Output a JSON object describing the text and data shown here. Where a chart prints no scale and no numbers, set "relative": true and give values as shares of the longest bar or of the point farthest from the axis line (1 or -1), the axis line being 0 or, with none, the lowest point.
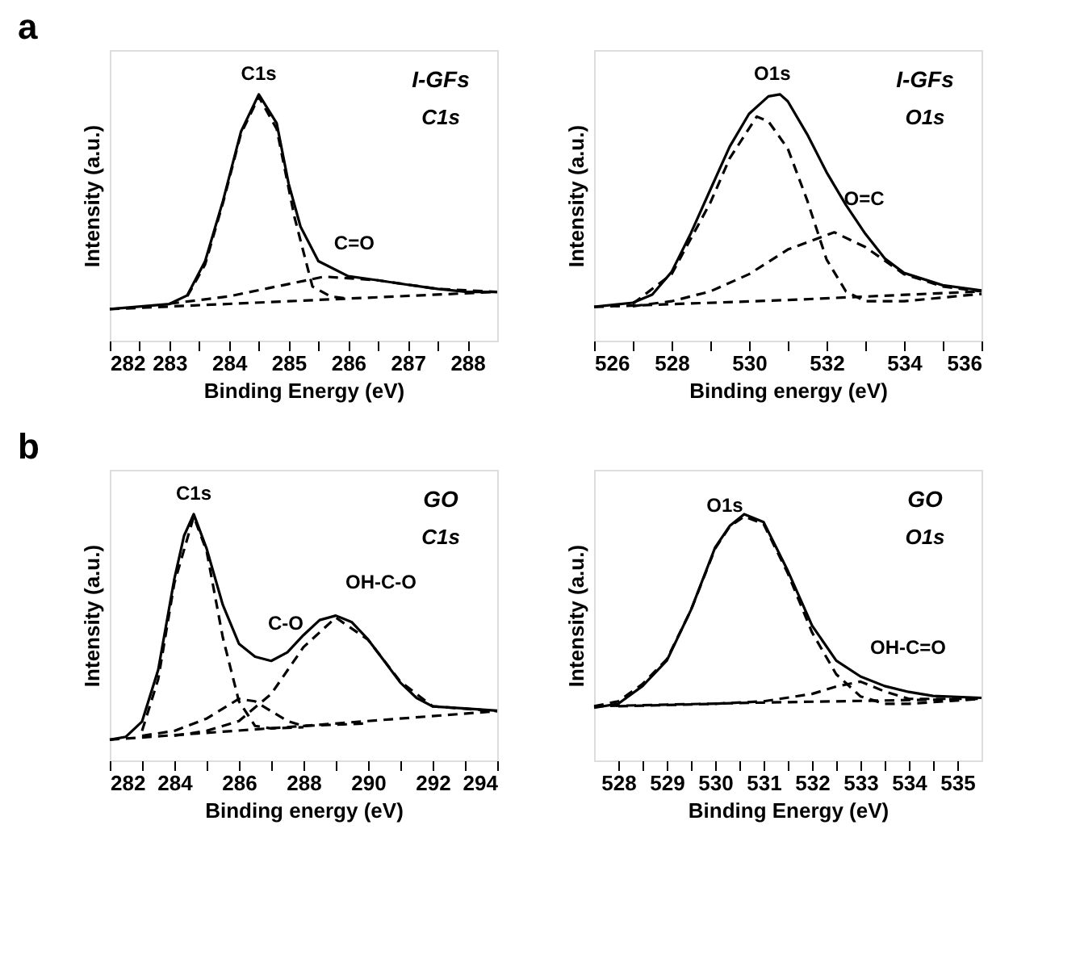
{
  "chart_data": [
    {
      "type": "line",
      "title": "a",
      "xlabel": "Binding Energy (eV)",
      "ylabel": "Intensity (a.u.)",
      "relative": true,
      "xlim": [
        282,
        288.5
      ],
      "xticks": [
        282,
        {
          "value": 282.5,
          "label": null
        },
        283,
        {
          "value": 283.5,
          "label": null
        },
        284,
        {
          "value": 284.5,
          "label": null
        },
        285,
        {
          "value": 285.5,
          "label": null
        },
        286,
        {
          "value": 286.5,
          "label": null
        },
        287,
        {
          "value": 287.5,
          "label": null
        },
        288
      ],
      "tick_labels": "x",
      "grid": false,
      "marker": "none",
      "series": [
        {
          "color": "#000000",
          "line_style": "solid",
          "x": [
            282,
            283,
            283.3,
            283.6,
            283.9,
            284.2,
            284.5,
            284.8,
            285.0,
            285.2,
            285.5,
            286,
            286.5,
            287,
            287.5,
            288,
            288.5
          ],
          "values": [
            0.128,
            0.149,
            0.184,
            0.323,
            0.568,
            0.848,
            1,
            0.883,
            0.638,
            0.463,
            0.323,
            0.262,
            0.245,
            0.227,
            0.21,
            0.198,
            0.198
          ]
        },
        {
          "color": "#000000",
          "line_style": "dashed",
          "x": [
            283.3,
            283.6,
            283.9,
            284.2,
            284.5,
            284.8,
            285.1,
            285.4,
            285.7,
            286
          ],
          "values": [
            0.18,
            0.31,
            0.56,
            0.84,
            0.99,
            0.86,
            0.5,
            0.22,
            0.18,
            0.17
          ]
        },
        {
          "color": "#000000",
          "line_style": "dashed",
          "x": [
            283,
            284,
            285,
            285.6,
            286.5,
            287.5,
            288.5
          ],
          "values": [
            0.15,
            0.18,
            0.23,
            0.26,
            0.245,
            0.21,
            0.198
          ]
        },
        {
          "color": "#000000",
          "line_style": "dashed",
          "x": [
            282,
            285,
            288.5
          ],
          "values": [
            0.128,
            0.16,
            0.198
          ]
        }
      ],
      "annotations": [
        {
          "text": "C1s",
          "x": 284.5,
          "y": 1
        },
        {
          "text": "C=O",
          "x": 285.6,
          "y": 0.26
        },
        "I-GFs",
        "C1s"
      ]
    },
    {
      "type": "line",
      "xlabel": "Binding energy (eV)",
      "ylabel": "Intensity (a.u.)",
      "relative": true,
      "xlim": [
        526,
        536
      ],
      "xticks": [
        526,
        {
          "value": 527,
          "label": null
        },
        528,
        {
          "value": 529,
          "label": null
        },
        530,
        {
          "value": 531,
          "label": null
        },
        532,
        {
          "value": 533,
          "label": null
        },
        534,
        {
          "value": 535,
          "label": null
        },
        536
      ],
      "tick_labels": "x",
      "grid": false,
      "marker": "none",
      "series": [
        {
          "color": "#000000",
          "line_style": "solid",
          "x": [
            526,
            527,
            527.5,
            528,
            528.5,
            529,
            529.5,
            530,
            530.5,
            530.8,
            531,
            531.5,
            532,
            532.5,
            533,
            533.5,
            534,
            535,
            536
          ],
          "values": [
            0.137,
            0.154,
            0.187,
            0.279,
            0.437,
            0.613,
            0.788,
            0.921,
            0.992,
            1,
            0.972,
            0.838,
            0.684,
            0.551,
            0.434,
            0.334,
            0.275,
            0.225,
            0.204
          ]
        },
        {
          "color": "#000000",
          "line_style": "dashed",
          "x": [
            527,
            528,
            529,
            529.5,
            530.2,
            530.5,
            531,
            531.5,
            532,
            532.5,
            533,
            534,
            536
          ],
          "values": [
            0.15,
            0.27,
            0.56,
            0.74,
            0.91,
            0.89,
            0.78,
            0.57,
            0.33,
            0.2,
            0.16,
            0.16,
            0.19
          ]
        },
        {
          "color": "#000000",
          "line_style": "dashed",
          "x": [
            527,
            528,
            529,
            530,
            531,
            532.2,
            533,
            534,
            535,
            536
          ],
          "values": [
            0.14,
            0.16,
            0.2,
            0.27,
            0.37,
            0.44,
            0.38,
            0.27,
            0.22,
            0.2
          ]
        },
        {
          "color": "#000000",
          "line_style": "dashed",
          "x": [
            526,
            531,
            536
          ],
          "values": [
            0.137,
            0.165,
            0.2
          ]
        }
      ],
      "annotations": [
        {
          "text": "O1s",
          "x": 530.6,
          "y": 1
        },
        {
          "text": "O=C",
          "x": 532.2,
          "y": 0.44
        },
        "I-GFs",
        "O1s"
      ]
    },
    {
      "type": "line",
      "title": "b",
      "xlabel": "Binding energy (eV)",
      "ylabel": "Intensity (a.u.)",
      "relative": true,
      "xlim": [
        282,
        294
      ],
      "xticks": [
        282,
        {
          "value": 283,
          "label": null
        },
        284,
        {
          "value": 285,
          "label": null
        },
        286,
        {
          "value": 287,
          "label": null
        },
        288,
        {
          "value": 289,
          "label": null
        },
        290,
        {
          "value": 291,
          "label": null
        },
        292,
        {
          "value": 293,
          "label": null
        },
        294
      ],
      "tick_labels": "x",
      "grid": false,
      "marker": "none",
      "series": [
        {
          "color": "#000000",
          "line_style": "solid",
          "x": [
            282,
            282.5,
            283,
            283.5,
            284,
            284.3,
            284.6,
            285,
            285.5,
            286,
            286.5,
            287,
            287.5,
            288,
            288.5,
            289,
            289.5,
            290,
            290.5,
            291,
            291.5,
            292,
            293,
            294
          ],
          "values": [
            0.084,
            0.096,
            0.158,
            0.368,
            0.737,
            0.912,
            1,
            0.86,
            0.632,
            0.474,
            0.421,
            0.404,
            0.439,
            0.509,
            0.57,
            0.588,
            0.561,
            0.491,
            0.404,
            0.316,
            0.254,
            0.219,
            0.211,
            0.202
          ]
        },
        {
          "color": "#000000",
          "line_style": "dashed",
          "x": [
            283,
            283.5,
            284,
            284.6,
            285,
            285.5,
            286,
            286.5,
            287,
            288
          ],
          "values": [
            0.12,
            0.33,
            0.72,
            0.99,
            0.85,
            0.5,
            0.24,
            0.14,
            0.13,
            0.135
          ]
        },
        {
          "color": "#000000",
          "line_style": "dashed",
          "x": [
            283,
            284,
            285,
            286,
            286.5,
            287,
            287.5,
            288,
            290
          ],
          "values": [
            0.1,
            0.12,
            0.17,
            0.25,
            0.24,
            0.2,
            0.16,
            0.14,
            0.15
          ]
        },
        {
          "color": "#000000",
          "line_style": "dashed",
          "x": [
            284,
            285,
            286,
            287,
            288,
            289,
            290,
            291,
            292,
            294
          ],
          "values": [
            0.1,
            0.12,
            0.16,
            0.27,
            0.46,
            0.58,
            0.49,
            0.32,
            0.22,
            0.2
          ]
        },
        {
          "color": "#000000",
          "line_style": "dashed",
          "x": [
            282,
            288,
            294
          ],
          "values": [
            0.084,
            0.14,
            0.2
          ]
        }
      ],
      "annotations": [
        {
          "text": "C1s",
          "x": 284.6,
          "y": 1
        },
        {
          "text": "C-O",
          "x": 286.6,
          "y": 0.42
        },
        {
          "text": "OH-C-O",
          "x": 289,
          "y": 0.588
        },
        "GO",
        "C1s"
      ]
    },
    {
      "type": "line",
      "xlabel": "Binding Energy (eV)",
      "ylabel": "Intensity (a.u.)",
      "relative": true,
      "xlim": [
        527.5,
        535.5
      ],
      "xticks": [
        528,
        {
          "value": 528.5,
          "label": null
        },
        529,
        {
          "value": 529.5,
          "label": null
        },
        530,
        {
          "value": 530.5,
          "label": null
        },
        531,
        {
          "value": 531.5,
          "label": null
        },
        532,
        {
          "value": 532.5,
          "label": null
        },
        533,
        {
          "value": 533.5,
          "label": null
        },
        534,
        {
          "value": 534.5,
          "label": null
        },
        535
      ],
      "tick_labels": "x",
      "grid": false,
      "marker": "none",
      "series": [
        {
          "color": "#000000",
          "line_style": "solid",
          "x": [
            527.5,
            528,
            528.5,
            529,
            529.5,
            530,
            530.3,
            530.6,
            531,
            531.5,
            532,
            532.5,
            533,
            533.5,
            534,
            534.5,
            535.5
          ],
          "values": [
            0.214,
            0.23,
            0.302,
            0.405,
            0.611,
            0.865,
            0.952,
            1,
            0.968,
            0.77,
            0.548,
            0.405,
            0.341,
            0.302,
            0.278,
            0.262,
            0.254
          ]
        },
        {
          "color": "#000000",
          "line_style": "dashed",
          "x": [
            527.5,
            528,
            528.5,
            529,
            529.5,
            530,
            530.3,
            530.6,
            531,
            531.5,
            532,
            532.5,
            533,
            533.5,
            534,
            535.5
          ],
          "values": [
            0.22,
            0.24,
            0.31,
            0.41,
            0.61,
            0.86,
            0.95,
            0.99,
            0.96,
            0.76,
            0.52,
            0.35,
            0.26,
            0.23,
            0.23,
            0.25
          ]
        },
        {
          "color": "#000000",
          "line_style": "dashed",
          "x": [
            528,
            530,
            531,
            532,
            532.5,
            533,
            533.5,
            534,
            535.5
          ],
          "values": [
            0.22,
            0.23,
            0.24,
            0.27,
            0.3,
            0.32,
            0.28,
            0.25,
            0.25
          ]
        },
        {
          "color": "#000000",
          "line_style": "dashed",
          "x": [
            527.5,
            531,
            535.5
          ],
          "values": [
            0.22,
            0.235,
            0.25
          ]
        }
      ],
      "annotations": [
        {
          "text": "O1s",
          "x": 530.2,
          "y": 0.95
        },
        {
          "text": "OH-C=O",
          "x": 533,
          "y": 0.32
        },
        "GO",
        "O1s"
      ]
    }
  ]
}
